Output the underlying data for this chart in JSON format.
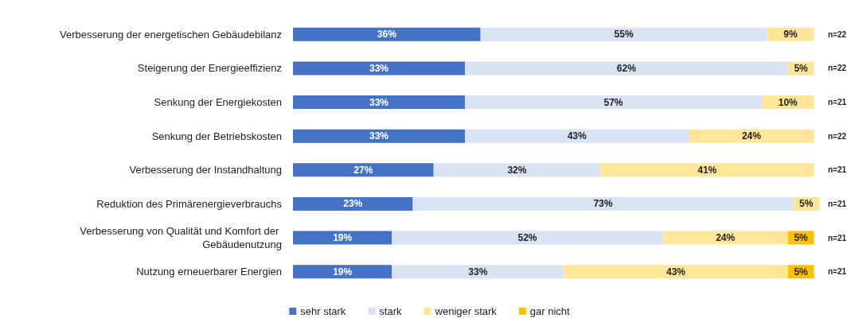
{
  "chart_data": {
    "type": "bar",
    "orientation": "horizontal",
    "stacked": true,
    "legend": "bottom",
    "grid": false,
    "tick_labels": "y",
    "xlim": [
      0,
      101
    ],
    "categories": [
      "Verbesserung der energetischen Gebäudebilanz",
      "Steigerung der Energieeffizienz",
      "Senkung der Energiekosten",
      "Senkung der Betriebskosten",
      "Verbesserung der Instandhaltung",
      "Reduktion des Primärenergieverbrauchs",
      "Verbesserung von Qualität und Komfort der Gebäudenutzung",
      "Nutzung erneuerbarer Energien"
    ],
    "series": [
      {
        "name": "sehr stark",
        "color": "#4472c4",
        "values": [
          36,
          33,
          33,
          33,
          27,
          23,
          19,
          19
        ],
        "value_labels": [
          "36%",
          "33%",
          "33%",
          "33%",
          "27%",
          "23%",
          "19%",
          "19%"
        ]
      },
      {
        "name": "stark",
        "color": "#dae3f3",
        "values": [
          55,
          62,
          57,
          43,
          32,
          73,
          52,
          33
        ],
        "value_labels": [
          "55%",
          "62%",
          "57%",
          "43%",
          "32%",
          "73%",
          "52%",
          "33%"
        ]
      },
      {
        "name": "weniger stark",
        "color": "#ffe699",
        "values": [
          9,
          5,
          10,
          24,
          41,
          5,
          24,
          43
        ],
        "value_labels": [
          "9%",
          "5%",
          "10%",
          "24%",
          "41%",
          "5%",
          "24%",
          "43%"
        ]
      },
      {
        "name": "gar nicht",
        "color": "#ffc000",
        "values": [
          null,
          null,
          null,
          null,
          null,
          null,
          5,
          5
        ],
        "value_labels": [
          null,
          null,
          null,
          null,
          null,
          null,
          "5%",
          "5%"
        ]
      }
    ],
    "annotations": [
      "n=22",
      "n=22",
      "n=21",
      "n=22",
      "n=21",
      "n=21",
      "n=21",
      "n=21"
    ]
  }
}
